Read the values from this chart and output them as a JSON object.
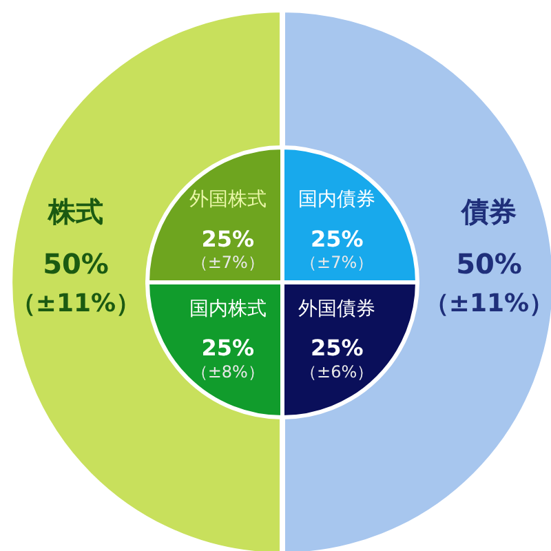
{
  "chart_data": [
    {
      "type": "pie",
      "categories": [
        "債券",
        "株式"
      ],
      "values": [
        50,
        50
      ],
      "colors": [
        "#a7c6ee",
        "#c8e05c"
      ],
      "value_labels": [
        "50%",
        "50%"
      ],
      "annotations": [
        "（±11%）",
        "（±11%）"
      ]
    },
    {
      "type": "pie",
      "categories": [
        "国内債券",
        "外国債券",
        "国内株式",
        "外国株式"
      ],
      "values": [
        25,
        25,
        25,
        25
      ],
      "colors": [
        "#18a9ec",
        "#0a0f5a",
        "#119c2c",
        "#6ea51f"
      ],
      "value_labels": [
        "25%",
        "25%",
        "25%",
        "25%"
      ],
      "annotations": [
        "（±7%）",
        "（±6%）",
        "（±8%）",
        "（±7%）"
      ]
    }
  ]
}
